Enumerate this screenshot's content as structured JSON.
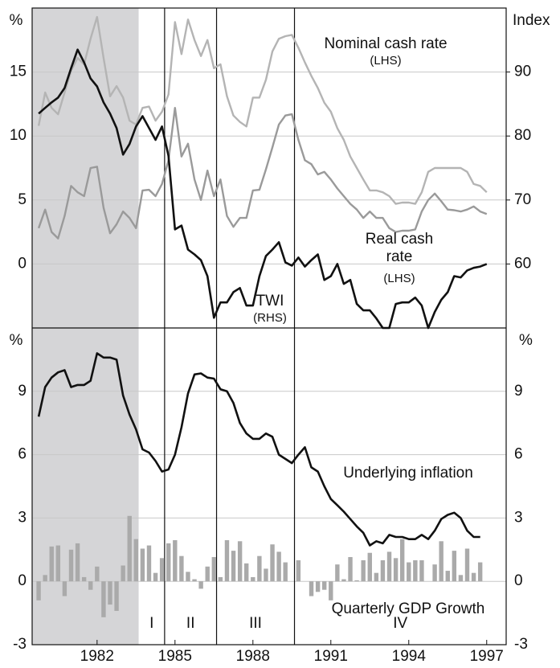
{
  "chart_data": [
    {
      "type": "line",
      "y_label": "%",
      "y2_label": "Index",
      "xlim": [
        1979.5,
        1997.75
      ],
      "ylim": [
        -5,
        20
      ],
      "yticks": [
        0,
        5,
        10,
        15
      ],
      "y2lim": [
        50,
        100
      ],
      "y2ticks": [
        60,
        70,
        80,
        90
      ],
      "grid": true,
      "x": [
        1979.75,
        1980,
        1980.25,
        1980.5,
        1980.75,
        1981,
        1981.25,
        1981.5,
        1981.75,
        1982,
        1982.25,
        1982.5,
        1982.75,
        1983,
        1983.25,
        1983.5,
        1983.75,
        1984,
        1984.25,
        1984.5,
        1984.75,
        1985,
        1985.25,
        1985.5,
        1985.75,
        1986,
        1986.25,
        1986.5,
        1986.75,
        1987,
        1987.25,
        1987.5,
        1987.75,
        1988,
        1988.25,
        1988.5,
        1988.75,
        1989,
        1989.25,
        1989.5,
        1989.75,
        1990,
        1990.25,
        1990.5,
        1990.75,
        1991,
        1991.25,
        1991.5,
        1991.75,
        1992,
        1992.25,
        1992.5,
        1992.75,
        1993,
        1993.25,
        1993.5,
        1993.75,
        1994,
        1994.25,
        1994.5,
        1994.75,
        1995,
        1995.25,
        1995.5,
        1995.75,
        1996,
        1996.25,
        1996.5,
        1996.75,
        1997
      ],
      "series": [
        {
          "name": "Nominal cash rate",
          "axis_note": "(LHS)",
          "color": "#b4b4b4",
          "values": [
            10.8,
            13.4,
            12.2,
            11.7,
            13.4,
            15.1,
            16.1,
            15.6,
            17.6,
            19.3,
            16.1,
            13.1,
            13.9,
            13.0,
            11.2,
            10.9,
            12.2,
            12.3,
            11.2,
            11.9,
            13.25,
            18.9,
            16.4,
            19.1,
            17.5,
            16.25,
            17.5,
            15.3,
            15.6,
            13.1,
            11.6,
            11.1,
            10.75,
            13,
            13,
            14.4,
            16.6,
            17.6,
            17.8,
            17.9,
            16.9,
            15.75,
            14.7,
            13.75,
            12.6,
            11.9,
            10.6,
            9.7,
            8.4,
            7.5,
            6.6,
            5.75,
            5.75,
            5.6,
            5.3,
            4.7,
            4.8,
            4.8,
            4.7,
            5.6,
            7.2,
            7.5,
            7.5,
            7.5,
            7.5,
            7.5,
            7.2,
            6.25,
            6.1,
            5.6
          ]
        },
        {
          "name": "Real cash rate",
          "axis_note": "(LHS)",
          "color": "#9a9a9a",
          "values": [
            2.8,
            4.25,
            2.5,
            2,
            3.75,
            6.1,
            5.6,
            5.3,
            7.5,
            7.6,
            4.4,
            2.4,
            3.1,
            4.1,
            3.6,
            2.8,
            5.75,
            5.8,
            5.3,
            6.25,
            8.1,
            12.2,
            8.4,
            9.4,
            6.6,
            5,
            7.3,
            5.3,
            6.6,
            3.75,
            2.9,
            3.6,
            3.6,
            5.75,
            5.8,
            7.4,
            9.1,
            10.9,
            11.6,
            11.7,
            9.7,
            8.1,
            7.8,
            7,
            7.2,
            6.6,
            5.9,
            5.3,
            4.7,
            4.25,
            3.6,
            4.1,
            3.6,
            3.6,
            2.8,
            2.5,
            2.6,
            2.6,
            2.7,
            4.1,
            5,
            5.5,
            4.9,
            4.25,
            4.2,
            4.1,
            4.25,
            4.5,
            4.1,
            3.9
          ]
        },
        {
          "name": "TWI",
          "axis_note": "(RHS)",
          "color": "#111111",
          "axis": "y2",
          "values": [
            83.5,
            84.4,
            85.25,
            86,
            87.5,
            90.6,
            93.5,
            91.5,
            89,
            87.75,
            85.25,
            83.5,
            81.25,
            77.1,
            78.75,
            81.5,
            83.1,
            81.25,
            79.4,
            81.5,
            76.9,
            65.4,
            66,
            62.25,
            61.5,
            60.6,
            58.1,
            51.6,
            54,
            54,
            55.6,
            56.25,
            53.5,
            53.5,
            58.1,
            61.25,
            62.25,
            63.4,
            60.25,
            59.75,
            61,
            59.6,
            60.6,
            61.5,
            57.5,
            58.1,
            60,
            56.9,
            57.5,
            53.75,
            52.75,
            52.75,
            51.5,
            50,
            50,
            53.75,
            54,
            54,
            54.75,
            53.5,
            50,
            52.5,
            54.4,
            55.6,
            58.1,
            57.9,
            59,
            59.4,
            59.6,
            60
          ]
        }
      ]
    },
    {
      "type": "combo",
      "y_label": "%",
      "y2_label": "%",
      "xlim": [
        1979.5,
        1997.75
      ],
      "xticks": [
        1982,
        1985,
        1988,
        1991,
        1994,
        1997
      ],
      "ylim": [
        -3,
        12
      ],
      "yticks": [
        -3,
        0,
        3,
        6,
        9
      ],
      "grid": true,
      "shade": [
        1979.5,
        1983.6
      ],
      "phase_boundaries": [
        1984.6,
        1986.6,
        1989.6
      ],
      "phase_labels": [
        "I",
        "II",
        "III",
        "IV"
      ],
      "x": [
        1979.75,
        1980,
        1980.25,
        1980.5,
        1980.75,
        1981,
        1981.25,
        1981.5,
        1981.75,
        1982,
        1982.25,
        1982.5,
        1982.75,
        1983,
        1983.25,
        1983.5,
        1983.75,
        1984,
        1984.25,
        1984.5,
        1984.75,
        1985,
        1985.25,
        1985.5,
        1985.75,
        1986,
        1986.25,
        1986.5,
        1986.75,
        1987,
        1987.25,
        1987.5,
        1987.75,
        1988,
        1988.25,
        1988.5,
        1988.75,
        1989,
        1989.25,
        1989.5,
        1989.75,
        1990,
        1990.25,
        1990.5,
        1990.75,
        1991,
        1991.25,
        1991.5,
        1991.75,
        1992,
        1992.25,
        1992.5,
        1992.75,
        1993,
        1993.25,
        1993.5,
        1993.75,
        1994,
        1994.25,
        1994.5,
        1994.75,
        1995,
        1995.25,
        1995.5,
        1995.75,
        1996,
        1996.25,
        1996.5,
        1996.75
      ],
      "series": [
        {
          "name": "Quarterly GDP Growth",
          "type": "bar",
          "color": "#aaaaaa",
          "values": [
            -0.9,
            0.3,
            1.65,
            1.7,
            -0.7,
            1.5,
            1.8,
            0.2,
            -0.4,
            0.7,
            -1.7,
            -1.1,
            -1.4,
            0.75,
            3.1,
            2.0,
            1.55,
            1.7,
            0.4,
            1.1,
            1.8,
            1.95,
            1.2,
            0.45,
            0.1,
            -0.35,
            0.7,
            1.15,
            0.2,
            1.95,
            1.45,
            1.9,
            0.85,
            0.2,
            1.2,
            0.6,
            1.75,
            1.4,
            0.9,
            0,
            1.0,
            0,
            -0.7,
            -0.5,
            -0.4,
            -0.9,
            0.8,
            0.1,
            1.15,
            0.05,
            1.0,
            1.35,
            0.4,
            1.0,
            1.4,
            1.1,
            2.0,
            0.9,
            1.0,
            1.0,
            0,
            0.8,
            1.9,
            0.5,
            1.45,
            0.3,
            1.55,
            0.4,
            0.9
          ]
        },
        {
          "name": "Underlying inflation",
          "type": "line",
          "color": "#111111",
          "values": [
            7.8,
            9.2,
            9.65,
            9.9,
            10,
            9.2,
            9.3,
            9.3,
            9.5,
            10.8,
            10.6,
            10.6,
            10.5,
            8.8,
            7.9,
            7.2,
            6.25,
            6.1,
            5.7,
            5.2,
            5.3,
            6,
            7.3,
            8.9,
            9.8,
            9.85,
            9.65,
            9.6,
            9.1,
            9,
            8.45,
            7.5,
            7,
            6.75,
            6.75,
            7,
            6.85,
            6,
            5.8,
            5.6,
            6,
            6.35,
            5.4,
            5.2,
            4.5,
            3.9,
            3.6,
            3.3,
            2.95,
            2.6,
            2.3,
            1.7,
            1.9,
            1.8,
            2.2,
            2.1,
            2.1,
            2,
            2,
            2.2,
            2,
            2.4,
            2.95,
            3.15,
            3.25,
            3,
            2.4,
            2.1,
            2.1
          ]
        }
      ]
    }
  ]
}
